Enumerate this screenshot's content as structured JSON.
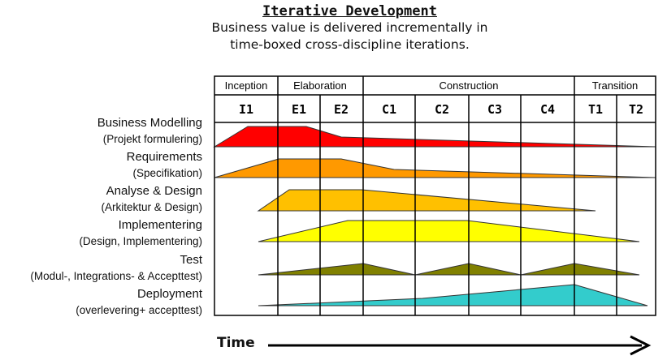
{
  "title": "Iterative Development",
  "subtitle_line1": "Business value is delivered incrementally in",
  "subtitle_line2": "time-boxed cross-discipline iterations.",
  "phases": [
    {
      "label": "Inception"
    },
    {
      "label": "Elaboration"
    },
    {
      "label": "Construction"
    },
    {
      "label": "Transition"
    }
  ],
  "iterations": [
    "I1",
    "E1",
    "E2",
    "C1",
    "C2",
    "C3",
    "C4",
    "T1",
    "T2"
  ],
  "disciplines": [
    {
      "name": "Business Modelling",
      "sub": "(Projekt formulering)",
      "color": "#ff0000"
    },
    {
      "name": "Requirements",
      "sub": "(Specifikation)",
      "color": "#ff9900"
    },
    {
      "name": "Analyse & Design",
      "sub": "(Arkitektur & Design)",
      "color": "#ffc000"
    },
    {
      "name": "Implementering",
      "sub": "(Design, Implementering)",
      "color": "#ffff00"
    },
    {
      "name": "Test",
      "sub": "(Modul-, Integrations- & Accepttest)",
      "color": "#808000"
    },
    {
      "name": "Deployment",
      "sub": "(overlevering+ accepttest)",
      "color": "#33cccc"
    }
  ],
  "time_label": "Time"
}
